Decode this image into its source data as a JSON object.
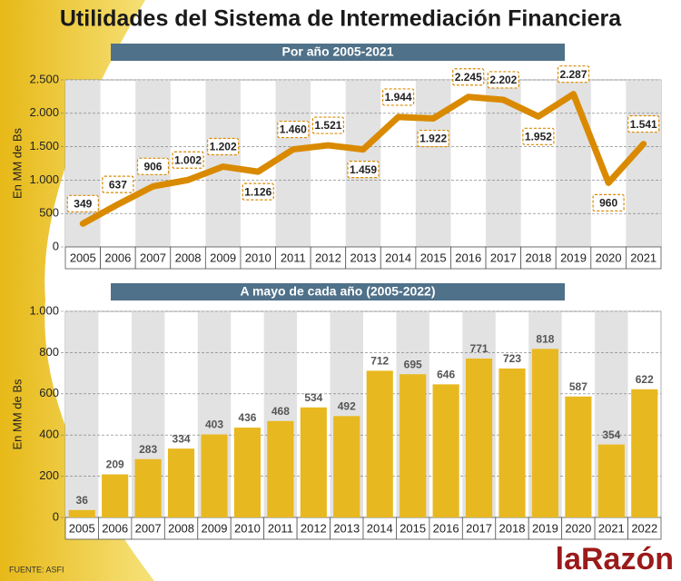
{
  "title": "Utilidades del Sistema de Intermediación Financiera",
  "source": "FUENTE: ASFI",
  "logo": "laRazón",
  "chart_data": [
    {
      "type": "line",
      "subtitle": "Por año 2005-2021",
      "ylabel": "En MM de Bs",
      "color": "#d98a00",
      "categories": [
        "2005",
        "2006",
        "2007",
        "2008",
        "2009",
        "2010",
        "2011",
        "2012",
        "2013",
        "2014",
        "2015",
        "2016",
        "2017",
        "2018",
        "2019",
        "2020",
        "2021"
      ],
      "values": [
        349,
        637,
        906,
        1002,
        1202,
        1126,
        1460,
        1521,
        1459,
        1944,
        1922,
        2245,
        2202,
        1952,
        2287,
        960,
        1541
      ],
      "value_labels": [
        "349",
        "637",
        "906",
        "1.002",
        "1.202",
        "1.126",
        "1.460",
        "1.521",
        "1.459",
        "1.944",
        "1.922",
        "2.245",
        "2.202",
        "1.952",
        "2.287",
        "960",
        "1.541"
      ],
      "ylim": [
        0,
        2500
      ],
      "yticks": [
        0,
        500,
        {
          "value": 1000,
          "label": "1.000"
        },
        {
          "value": 1500,
          "label": "1.500"
        },
        {
          "value": 2000,
          "label": "2.000"
        },
        {
          "value": 2500,
          "label": "2.500"
        }
      ]
    },
    {
      "type": "bar",
      "subtitle": "A mayo de cada año (2005-2022)",
      "ylabel": "En MM de Bs",
      "color": "#e8b820",
      "categories": [
        "2005",
        "2006",
        "2007",
        "2008",
        "2009",
        "2010",
        "2011",
        "2012",
        "2013",
        "2014",
        "2015",
        "2016",
        "2017",
        "2018",
        "2019",
        "2020",
        "2021",
        "2022"
      ],
      "values": [
        36,
        209,
        283,
        334,
        403,
        436,
        468,
        534,
        492,
        712,
        695,
        646,
        771,
        723,
        818,
        587,
        354,
        622
      ],
      "ylim": [
        0,
        1000
      ],
      "yticks": [
        0,
        200,
        400,
        600,
        800,
        {
          "value": 1000,
          "label": "1.000"
        }
      ]
    }
  ]
}
